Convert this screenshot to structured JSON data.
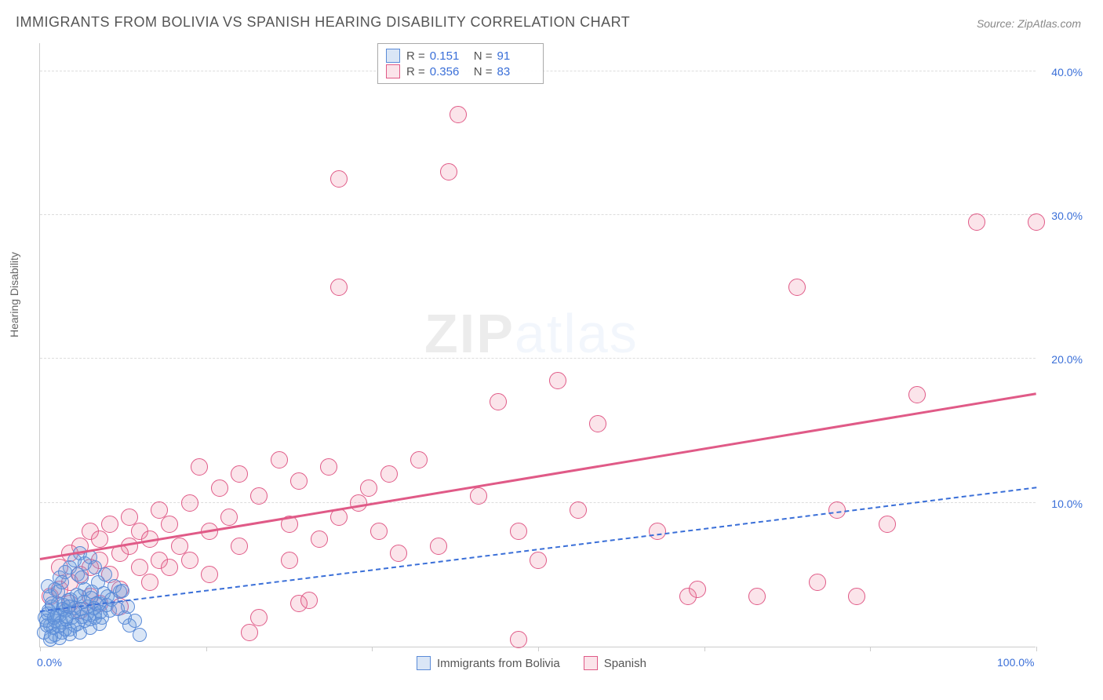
{
  "title": "IMMIGRANTS FROM BOLIVIA VS SPANISH HEARING DISABILITY CORRELATION CHART",
  "source_prefix": "Source: ",
  "source_name": "ZipAtlas.com",
  "y_axis_title": "Hearing Disability",
  "watermark_bold": "ZIP",
  "watermark_thin": "atlas",
  "plot": {
    "x_min": 0,
    "x_max": 100,
    "y_min": 0,
    "y_max": 42,
    "x_ticks": [
      0,
      16.67,
      33.33,
      50,
      66.67,
      83.33,
      100
    ],
    "x_labels_shown": {
      "0": "0.0%",
      "100": "100.0%"
    },
    "y_gridlines": [
      10,
      20,
      30,
      40
    ],
    "y_labels": {
      "10": "10.0%",
      "20": "20.0%",
      "30": "30.0%",
      "40": "40.0%"
    },
    "grid_color": "#dddddd",
    "axis_color": "#cccccc",
    "label_color": "#3a6fd8",
    "bg": "#ffffff"
  },
  "series": {
    "blue": {
      "name": "Immigrants from Bolivia",
      "fill": "rgba(106,156,220,0.25)",
      "stroke": "#5a8bd8",
      "marker_r": 9,
      "R": "0.151",
      "N": "91",
      "trend": {
        "x1": 0,
        "y1": 2.4,
        "x2": 100,
        "y2": 11.0,
        "color": "#3a6fd8",
        "width": 2,
        "dash": true
      },
      "points": [
        [
          0.5,
          2.0
        ],
        [
          0.8,
          2.3
        ],
        [
          1.0,
          1.5
        ],
        [
          1.2,
          2.8
        ],
        [
          1.5,
          1.8
        ],
        [
          1.8,
          3.0
        ],
        [
          2.0,
          2.2
        ],
        [
          2.2,
          1.0
        ],
        [
          2.5,
          2.5
        ],
        [
          2.8,
          3.2
        ],
        [
          3.0,
          1.2
        ],
        [
          3.2,
          2.0
        ],
        [
          3.5,
          2.7
        ],
        [
          3.8,
          1.6
        ],
        [
          4.0,
          3.5
        ],
        [
          4.2,
          2.1
        ],
        [
          4.5,
          4.0
        ],
        [
          4.8,
          2.8
        ],
        [
          5.0,
          1.9
        ],
        [
          5.2,
          3.8
        ],
        [
          5.5,
          2.3
        ],
        [
          5.8,
          4.5
        ],
        [
          6.0,
          3.0
        ],
        [
          6.2,
          2.0
        ],
        [
          6.5,
          5.0
        ],
        [
          6.8,
          3.5
        ],
        [
          7.0,
          2.5
        ],
        [
          7.5,
          4.2
        ],
        [
          8.0,
          3.8
        ],
        [
          8.5,
          2.0
        ],
        [
          9.0,
          1.5
        ],
        [
          10.0,
          0.8
        ],
        [
          3.0,
          5.5
        ],
        [
          3.5,
          6.0
        ],
        [
          4.0,
          6.5
        ],
        [
          4.5,
          5.8
        ],
        [
          5.0,
          6.2
        ],
        [
          2.0,
          4.8
        ],
        [
          2.5,
          5.2
        ],
        [
          1.5,
          4.0
        ],
        [
          1.0,
          3.5
        ],
        [
          0.8,
          4.2
        ],
        [
          1.2,
          3.0
        ],
        [
          1.8,
          3.8
        ],
        [
          2.2,
          4.5
        ],
        [
          3.8,
          5.0
        ],
        [
          4.2,
          4.8
        ],
        [
          5.5,
          5.5
        ],
        [
          1.0,
          0.5
        ],
        [
          1.5,
          0.8
        ],
        [
          2.0,
          0.6
        ],
        [
          2.5,
          1.2
        ],
        [
          3.0,
          0.9
        ],
        [
          3.5,
          1.5
        ],
        [
          4.0,
          1.0
        ],
        [
          4.5,
          1.8
        ],
        [
          5.0,
          1.3
        ],
        [
          5.5,
          2.0
        ],
        [
          6.0,
          1.6
        ],
        [
          0.6,
          1.8
        ],
        [
          0.9,
          2.5
        ],
        [
          1.3,
          1.3
        ],
        [
          1.7,
          2.2
        ],
        [
          2.1,
          1.7
        ],
        [
          2.4,
          2.9
        ],
        [
          2.7,
          2.1
        ],
        [
          3.1,
          3.3
        ],
        [
          3.4,
          2.4
        ],
        [
          3.7,
          3.6
        ],
        [
          4.1,
          2.6
        ],
        [
          4.4,
          3.1
        ],
        [
          4.7,
          2.3
        ],
        [
          5.1,
          3.4
        ],
        [
          5.4,
          2.7
        ],
        [
          5.7,
          3.0
        ],
        [
          6.1,
          2.4
        ],
        [
          6.4,
          3.7
        ],
        [
          6.7,
          2.9
        ],
        [
          7.2,
          3.3
        ],
        [
          7.8,
          2.6
        ],
        [
          8.3,
          3.9
        ],
        [
          8.8,
          2.8
        ],
        [
          9.5,
          1.8
        ],
        [
          0.4,
          1.0
        ],
        [
          0.7,
          1.5
        ],
        [
          1.1,
          0.7
        ],
        [
          1.4,
          2.0
        ],
        [
          1.9,
          1.4
        ],
        [
          2.3,
          2.6
        ],
        [
          2.6,
          1.9
        ],
        [
          2.9,
          2.8
        ]
      ]
    },
    "pink": {
      "name": "Spanish",
      "fill": "rgba(235,120,150,0.20)",
      "stroke": "#e05a87",
      "marker_r": 11,
      "R": "0.356",
      "N": "83",
      "trend": {
        "x1": 0,
        "y1": 6.0,
        "x2": 100,
        "y2": 17.5,
        "color": "#e05a87",
        "width": 3,
        "dash": false
      },
      "points": [
        [
          1,
          3.5
        ],
        [
          2,
          4.0
        ],
        [
          2,
          5.5
        ],
        [
          3,
          4.5
        ],
        [
          3,
          6.5
        ],
        [
          4,
          5.0
        ],
        [
          4,
          7.0
        ],
        [
          5,
          5.5
        ],
        [
          5,
          8.0
        ],
        [
          5,
          3.5
        ],
        [
          6,
          6.0
        ],
        [
          6,
          7.5
        ],
        [
          7,
          5.0
        ],
        [
          7,
          8.5
        ],
        [
          8,
          6.5
        ],
        [
          8,
          4.0
        ],
        [
          9,
          7.0
        ],
        [
          9,
          9.0
        ],
        [
          10,
          5.5
        ],
        [
          10,
          8.0
        ],
        [
          11,
          7.5
        ],
        [
          12,
          6.0
        ],
        [
          12,
          9.5
        ],
        [
          13,
          8.5
        ],
        [
          14,
          7.0
        ],
        [
          15,
          10.0
        ],
        [
          15,
          6.0
        ],
        [
          16,
          12.5
        ],
        [
          17,
          8.0
        ],
        [
          18,
          11.0
        ],
        [
          19,
          9.0
        ],
        [
          20,
          12.0
        ],
        [
          20,
          7.0
        ],
        [
          22,
          10.5
        ],
        [
          22,
          2.0
        ],
        [
          24,
          13.0
        ],
        [
          25,
          8.5
        ],
        [
          25,
          6.0
        ],
        [
          26,
          11.5
        ],
        [
          26,
          3.0
        ],
        [
          27,
          3.2
        ],
        [
          28,
          7.5
        ],
        [
          29,
          12.5
        ],
        [
          30,
          9.0
        ],
        [
          30,
          32.5
        ],
        [
          30,
          25.0
        ],
        [
          32,
          10.0
        ],
        [
          33,
          11.0
        ],
        [
          34,
          8.0
        ],
        [
          35,
          12.0
        ],
        [
          36,
          6.5
        ],
        [
          38,
          13.0
        ],
        [
          40,
          7.0
        ],
        [
          41,
          33.0
        ],
        [
          42,
          37.0
        ],
        [
          44,
          10.5
        ],
        [
          46,
          17.0
        ],
        [
          48,
          8.0
        ],
        [
          50,
          6.0
        ],
        [
          52,
          18.5
        ],
        [
          54,
          9.5
        ],
        [
          56,
          15.5
        ],
        [
          62,
          8.0
        ],
        [
          65,
          3.5
        ],
        [
          66,
          4.0
        ],
        [
          72,
          3.5
        ],
        [
          76,
          25.0
        ],
        [
          78,
          4.5
        ],
        [
          80,
          9.5
        ],
        [
          82,
          3.5
        ],
        [
          85,
          8.5
        ],
        [
          88,
          17.5
        ],
        [
          94,
          29.5
        ],
        [
          100,
          29.5
        ],
        [
          3,
          3.0
        ],
        [
          4,
          2.5
        ],
        [
          6,
          3.0
        ],
        [
          8,
          2.8
        ],
        [
          11,
          4.5
        ],
        [
          13,
          5.5
        ],
        [
          17,
          5.0
        ],
        [
          21,
          1.0
        ],
        [
          48,
          0.5
        ]
      ]
    }
  },
  "top_legend": {
    "r_label": "R =",
    "n_label": "N ="
  },
  "bottom_legend": {
    "items": [
      "blue",
      "pink"
    ]
  }
}
